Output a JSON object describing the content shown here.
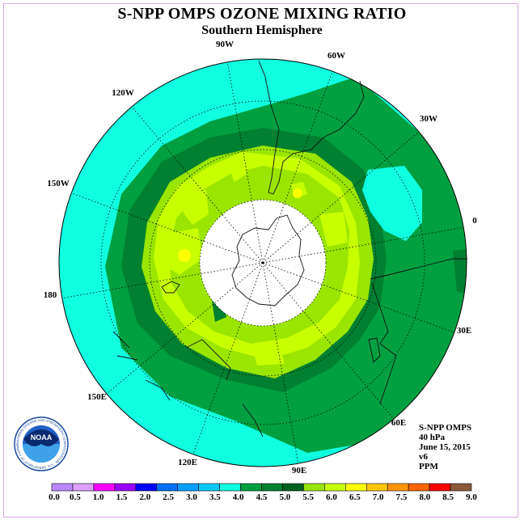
{
  "title": "S-NPP OMPS OZONE MIXING RATIO",
  "subtitle": "Southern Hemisphere",
  "meridian_labels": [
    "90W",
    "60W",
    "30W",
    "0",
    "30E",
    "60E",
    "90E",
    "120E",
    "150E",
    "180",
    "150W",
    "120W"
  ],
  "info": {
    "instrument": "S-NPP OMPS",
    "level": "40 hPa",
    "date": "June 15, 2015",
    "version": "v6",
    "units": "PPM"
  },
  "logo": {
    "text": "NOAA",
    "ring_text": "NATIONAL OCEANIC AND ATMOSPHERIC ADMINISTRATION · U.S. DEPARTMENT OF COMMERCE"
  },
  "colorbar": {
    "ticks": [
      "0.0",
      "0.5",
      "1.0",
      "1.5",
      "2.0",
      "2.5",
      "3.0",
      "3.5",
      "4.0",
      "4.5",
      "5.0",
      "5.5",
      "6.0",
      "6.5",
      "7.0",
      "7.5",
      "8.0",
      "8.5",
      "9.0"
    ],
    "colors": [
      "#bb88ff",
      "#dda0ff",
      "#ff00ff",
      "#9a00ff",
      "#0000ff",
      "#0070ff",
      "#00a0ff",
      "#00c8ff",
      "#10ffe0",
      "#00a040",
      "#008030",
      "#006020",
      "#9ae600",
      "#c8ff00",
      "#ffff00",
      "#ffc800",
      "#ff9600",
      "#ff6400",
      "#ff0000",
      "#8a5a3c"
    ]
  },
  "map_colors": {
    "c35_40": "#10ffe0",
    "c40_45": "#00a040",
    "c45_50": "#008030",
    "c50_55": "#9ae600",
    "c55_60": "#c8ff00",
    "c60_65": "#ffff00"
  }
}
